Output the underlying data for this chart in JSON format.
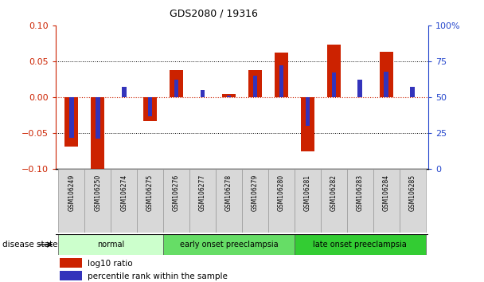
{
  "title": "GDS2080 / 19316",
  "samples": [
    "GSM106249",
    "GSM106250",
    "GSM106274",
    "GSM106275",
    "GSM106276",
    "GSM106277",
    "GSM106278",
    "GSM106279",
    "GSM106280",
    "GSM106281",
    "GSM106282",
    "GSM106283",
    "GSM106284",
    "GSM106285"
  ],
  "log10_ratio": [
    -0.068,
    -0.105,
    0.0,
    -0.033,
    0.038,
    0.0,
    0.005,
    0.038,
    0.062,
    -0.075,
    0.073,
    0.0,
    0.063,
    0.0
  ],
  "percentile_rank": [
    22,
    21,
    57,
    37,
    62,
    55,
    51,
    65,
    72,
    30,
    67,
    62,
    68,
    57
  ],
  "groups": [
    {
      "label": "normal",
      "start": 0,
      "end": 4,
      "color": "#ccffcc"
    },
    {
      "label": "early onset preeclampsia",
      "start": 4,
      "end": 9,
      "color": "#66dd66"
    },
    {
      "label": "late onset preeclampsia",
      "start": 9,
      "end": 14,
      "color": "#33cc33"
    }
  ],
  "ylim_left": [
    -0.1,
    0.1
  ],
  "ylim_right": [
    0,
    100
  ],
  "yticks_left": [
    -0.1,
    -0.05,
    0,
    0.05,
    0.1
  ],
  "yticks_right": [
    0,
    25,
    50,
    75,
    100
  ],
  "ytick_labels_right": [
    "0",
    "25",
    "50",
    "75",
    "100%"
  ],
  "hline_dotted_black": [
    -0.05,
    0.05
  ],
  "hline_dotted_red": [
    0
  ],
  "red_color": "#cc2200",
  "blue_color": "#3333bb",
  "bar_width": 0.5,
  "disease_state_label": "disease state",
  "legend_log10": "log10 ratio",
  "legend_percentile": "percentile rank within the sample",
  "tick_color_left": "#cc2200",
  "tick_color_right": "#2244cc",
  "xtick_bg": "#dddddd"
}
